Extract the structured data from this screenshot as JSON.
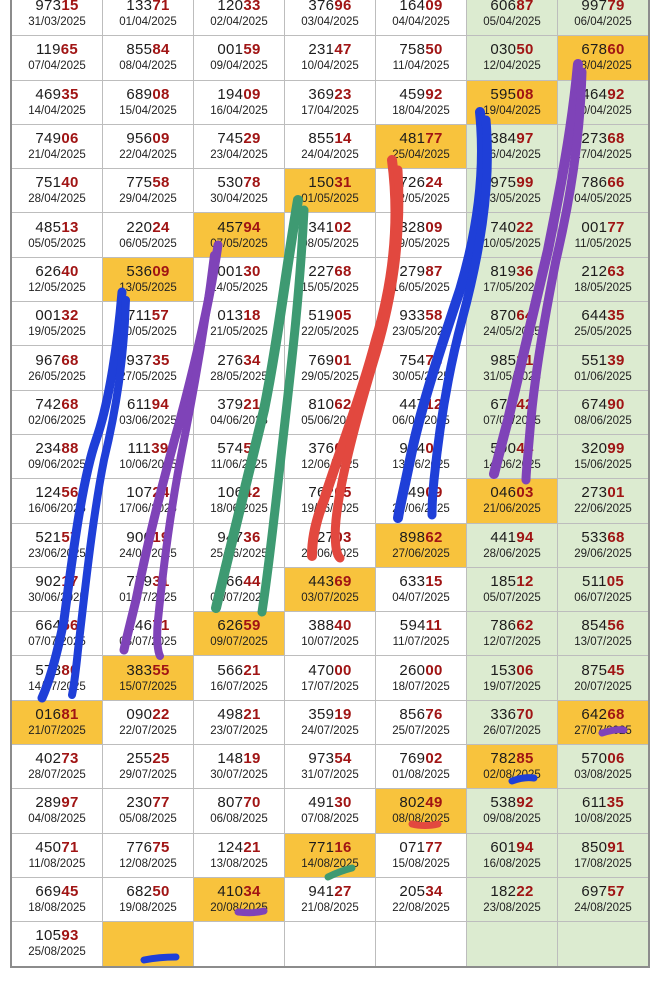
{
  "colors": {
    "green_col": "#dcebd0",
    "highlight": "#f8c33d",
    "digit_hi": "#a01414"
  },
  "cells": [
    {
      "n": "97315",
      "d": "31/03/2025"
    },
    {
      "n": "13371",
      "d": "01/04/2025"
    },
    {
      "n": "12033",
      "d": "02/04/2025"
    },
    {
      "n": "37696",
      "d": "03/04/2025"
    },
    {
      "n": "16409",
      "d": "04/04/2025"
    },
    {
      "n": "60687",
      "d": "05/04/2025"
    },
    {
      "n": "99779",
      "d": "06/04/2025"
    },
    {
      "n": "11965",
      "d": "07/04/2025"
    },
    {
      "n": "85584",
      "d": "08/04/2025"
    },
    {
      "n": "00159",
      "d": "09/04/2025"
    },
    {
      "n": "23147",
      "d": "10/04/2025"
    },
    {
      "n": "75850",
      "d": "11/04/2025"
    },
    {
      "n": "03050",
      "d": "12/04/2025"
    },
    {
      "n": "67860",
      "d": "13/04/2025",
      "hl": true
    },
    {
      "n": "46935",
      "d": "14/04/2025"
    },
    {
      "n": "68908",
      "d": "15/04/2025"
    },
    {
      "n": "19409",
      "d": "16/04/2025"
    },
    {
      "n": "36923",
      "d": "17/04/2025"
    },
    {
      "n": "45992",
      "d": "18/04/2025"
    },
    {
      "n": "59508",
      "d": "19/04/2025",
      "hl": true
    },
    {
      "n": "46492",
      "d": "20/04/2025"
    },
    {
      "n": "74906",
      "d": "21/04/2025"
    },
    {
      "n": "95609",
      "d": "22/04/2025"
    },
    {
      "n": "74529",
      "d": "23/04/2025"
    },
    {
      "n": "85514",
      "d": "24/04/2025"
    },
    {
      "n": "48177",
      "d": "25/04/2025",
      "hl": true
    },
    {
      "n": "38497",
      "d": "26/04/2025"
    },
    {
      "n": "27368",
      "d": "27/04/2025"
    },
    {
      "n": "75140",
      "d": "28/04/2025"
    },
    {
      "n": "77558",
      "d": "29/04/2025"
    },
    {
      "n": "53078",
      "d": "30/04/2025"
    },
    {
      "n": "15031",
      "d": "01/05/2025",
      "hl": true
    },
    {
      "n": "72624",
      "d": "02/05/2025"
    },
    {
      "n": "97599",
      "d": "03/05/2025"
    },
    {
      "n": "78666",
      "d": "04/05/2025"
    },
    {
      "n": "48513",
      "d": "05/05/2025"
    },
    {
      "n": "22024",
      "d": "06/05/2025"
    },
    {
      "n": "45794",
      "d": "07/05/2025",
      "hl": true
    },
    {
      "n": "34102",
      "d": "08/05/2025"
    },
    {
      "n": "32809",
      "d": "09/05/2025"
    },
    {
      "n": "74022",
      "d": "10/05/2025"
    },
    {
      "n": "00177",
      "d": "11/05/2025"
    },
    {
      "n": "62640",
      "d": "12/05/2025"
    },
    {
      "n": "53609",
      "d": "13/05/2025",
      "hl": true
    },
    {
      "n": "00130",
      "d": "14/05/2025"
    },
    {
      "n": "22768",
      "d": "15/05/2025"
    },
    {
      "n": "27987",
      "d": "16/05/2025"
    },
    {
      "n": "81936",
      "d": "17/05/2025"
    },
    {
      "n": "21263",
      "d": "18/05/2025"
    },
    {
      "n": "00132",
      "d": "19/05/2025"
    },
    {
      "n": "71157",
      "d": "20/05/2025"
    },
    {
      "n": "01318",
      "d": "21/05/2025"
    },
    {
      "n": "51905",
      "d": "22/05/2025"
    },
    {
      "n": "93358",
      "d": "23/05/2025"
    },
    {
      "n": "87064",
      "d": "24/05/2025"
    },
    {
      "n": "64435",
      "d": "25/05/2025"
    },
    {
      "n": "96768",
      "d": "26/05/2025"
    },
    {
      "n": "93735",
      "d": "27/05/2025"
    },
    {
      "n": "27634",
      "d": "28/05/2025"
    },
    {
      "n": "76901",
      "d": "29/05/2025"
    },
    {
      "n": "75473",
      "d": "30/05/2025"
    },
    {
      "n": "98581",
      "d": "31/05/2025"
    },
    {
      "n": "55139",
      "d": "01/06/2025"
    },
    {
      "n": "74268",
      "d": "02/06/2025"
    },
    {
      "n": "61194",
      "d": "03/06/2025"
    },
    {
      "n": "37921",
      "d": "04/06/2025"
    },
    {
      "n": "81062",
      "d": "05/06/2025"
    },
    {
      "n": "44712",
      "d": "06/06/2025"
    },
    {
      "n": "67142",
      "d": "07/06/2025"
    },
    {
      "n": "67490",
      "d": "08/06/2025"
    },
    {
      "n": "23488",
      "d": "09/06/2025"
    },
    {
      "n": "11139",
      "d": "10/06/2025"
    },
    {
      "n": "57457",
      "d": "11/06/2025"
    },
    {
      "n": "37605",
      "d": "12/06/2025"
    },
    {
      "n": "98406",
      "d": "13/06/2025"
    },
    {
      "n": "59044",
      "d": "14/06/2025"
    },
    {
      "n": "32099",
      "d": "15/06/2025"
    },
    {
      "n": "12456",
      "d": "16/06/2025"
    },
    {
      "n": "10724",
      "d": "17/06/2025"
    },
    {
      "n": "10642",
      "d": "18/06/2025"
    },
    {
      "n": "76205",
      "d": "19/06/2025"
    },
    {
      "n": "34909",
      "d": "20/06/2025"
    },
    {
      "n": "04603",
      "d": "21/06/2025",
      "hl": true
    },
    {
      "n": "27301",
      "d": "22/06/2025"
    },
    {
      "n": "52157",
      "d": "23/06/2025"
    },
    {
      "n": "90019",
      "d": "24/06/2025"
    },
    {
      "n": "94736",
      "d": "25/06/2025"
    },
    {
      "n": "12703",
      "d": "26/06/2025"
    },
    {
      "n": "89862",
      "d": "27/06/2025",
      "hl": true
    },
    {
      "n": "44194",
      "d": "28/06/2025"
    },
    {
      "n": "53368",
      "d": "29/06/2025"
    },
    {
      "n": "90217",
      "d": "30/06/2025"
    },
    {
      "n": "77931",
      "d": "01/07/2025"
    },
    {
      "n": "56644",
      "d": "02/07/2025"
    },
    {
      "n": "44369",
      "d": "03/07/2025",
      "hl": true
    },
    {
      "n": "63315",
      "d": "04/07/2025"
    },
    {
      "n": "18512",
      "d": "05/07/2025"
    },
    {
      "n": "51105",
      "d": "06/07/2025"
    },
    {
      "n": "66456",
      "d": "07/07/2025"
    },
    {
      "n": "24671",
      "d": "08/07/2025"
    },
    {
      "n": "62659",
      "d": "09/07/2025",
      "hl": true
    },
    {
      "n": "38840",
      "d": "10/07/2025"
    },
    {
      "n": "59411",
      "d": "11/07/2025"
    },
    {
      "n": "78662",
      "d": "12/07/2025"
    },
    {
      "n": "85456",
      "d": "13/07/2025"
    },
    {
      "n": "57880",
      "d": "14/07/2025"
    },
    {
      "n": "38355",
      "d": "15/07/2025",
      "hl": true
    },
    {
      "n": "56621",
      "d": "16/07/2025"
    },
    {
      "n": "47000",
      "d": "17/07/2025"
    },
    {
      "n": "26000",
      "d": "18/07/2025"
    },
    {
      "n": "15306",
      "d": "19/07/2025"
    },
    {
      "n": "87545",
      "d": "20/07/2025"
    },
    {
      "n": "01681",
      "d": "21/07/2025",
      "hl": true
    },
    {
      "n": "09022",
      "d": "22/07/2025"
    },
    {
      "n": "49821",
      "d": "23/07/2025"
    },
    {
      "n": "35919",
      "d": "24/07/2025"
    },
    {
      "n": "85676",
      "d": "25/07/2025"
    },
    {
      "n": "33670",
      "d": "26/07/2025"
    },
    {
      "n": "64268",
      "d": "27/07/2025",
      "hl": true
    },
    {
      "n": "40273",
      "d": "28/07/2025"
    },
    {
      "n": "25525",
      "d": "29/07/2025"
    },
    {
      "n": "14819",
      "d": "30/07/2025"
    },
    {
      "n": "97354",
      "d": "31/07/2025"
    },
    {
      "n": "76902",
      "d": "01/08/2025"
    },
    {
      "n": "78285",
      "d": "02/08/2025",
      "hl": true
    },
    {
      "n": "57006",
      "d": "03/08/2025"
    },
    {
      "n": "28997",
      "d": "04/08/2025"
    },
    {
      "n": "23077",
      "d": "05/08/2025"
    },
    {
      "n": "80770",
      "d": "06/08/2025"
    },
    {
      "n": "49130",
      "d": "07/08/2025"
    },
    {
      "n": "80249",
      "d": "08/08/2025",
      "hl": true
    },
    {
      "n": "53892",
      "d": "09/08/2025"
    },
    {
      "n": "61135",
      "d": "10/08/2025"
    },
    {
      "n": "45071",
      "d": "11/08/2025"
    },
    {
      "n": "77675",
      "d": "12/08/2025"
    },
    {
      "n": "12421",
      "d": "13/08/2025"
    },
    {
      "n": "77116",
      "d": "14/08/2025",
      "hl": true
    },
    {
      "n": "07177",
      "d": "15/08/2025"
    },
    {
      "n": "60194",
      "d": "16/08/2025"
    },
    {
      "n": "85091",
      "d": "17/08/2025"
    },
    {
      "n": "66945",
      "d": "18/08/2025"
    },
    {
      "n": "68250",
      "d": "19/08/2025"
    },
    {
      "n": "41034",
      "d": "20/08/2025",
      "hl": true
    },
    {
      "n": "94127",
      "d": "21/08/2025"
    },
    {
      "n": "20534",
      "d": "22/08/2025"
    },
    {
      "n": "18222",
      "d": "23/08/2025"
    },
    {
      "n": "69757",
      "d": "24/08/2025"
    },
    {
      "n": "10593",
      "d": "25/08/2025"
    },
    {
      "n": "",
      "d": "",
      "hl": true
    },
    {
      "n": "",
      "d": "",
      "empty": true
    },
    {
      "n": "",
      "d": "",
      "empty": true
    },
    {
      "n": "",
      "d": "",
      "empty": true
    },
    {
      "n": "",
      "d": ""
    },
    {
      "n": "",
      "d": ""
    }
  ]
}
